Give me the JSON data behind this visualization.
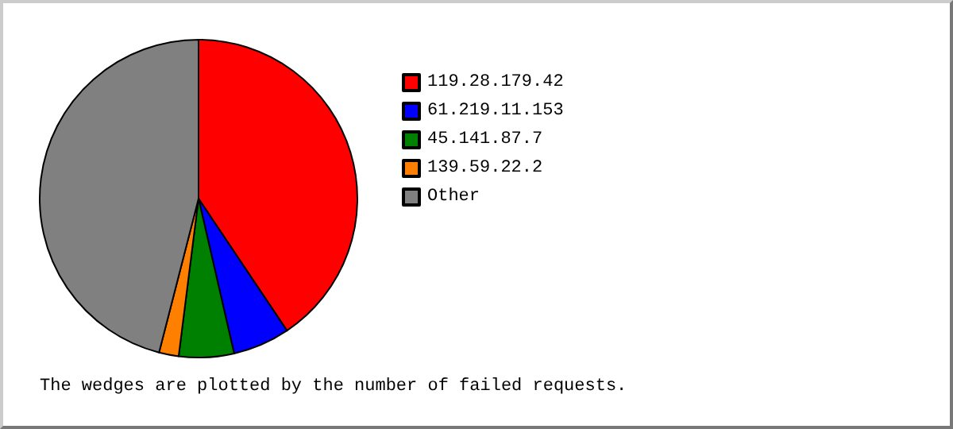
{
  "chart_data": {
    "type": "pie",
    "categories": [
      "119.28.179.42",
      "61.219.11.153",
      "45.141.87.7",
      "139.59.22.2",
      "Other"
    ],
    "values": [
      40.6,
      5.8,
      5.6,
      2.0,
      46.0
    ],
    "colors": [
      "#ff0000",
      "#0000ff",
      "#008000",
      "#ff8000",
      "#808080"
    ],
    "legend": "right",
    "annotations": [
      "The wedges are plotted by the number of failed requests."
    ]
  }
}
